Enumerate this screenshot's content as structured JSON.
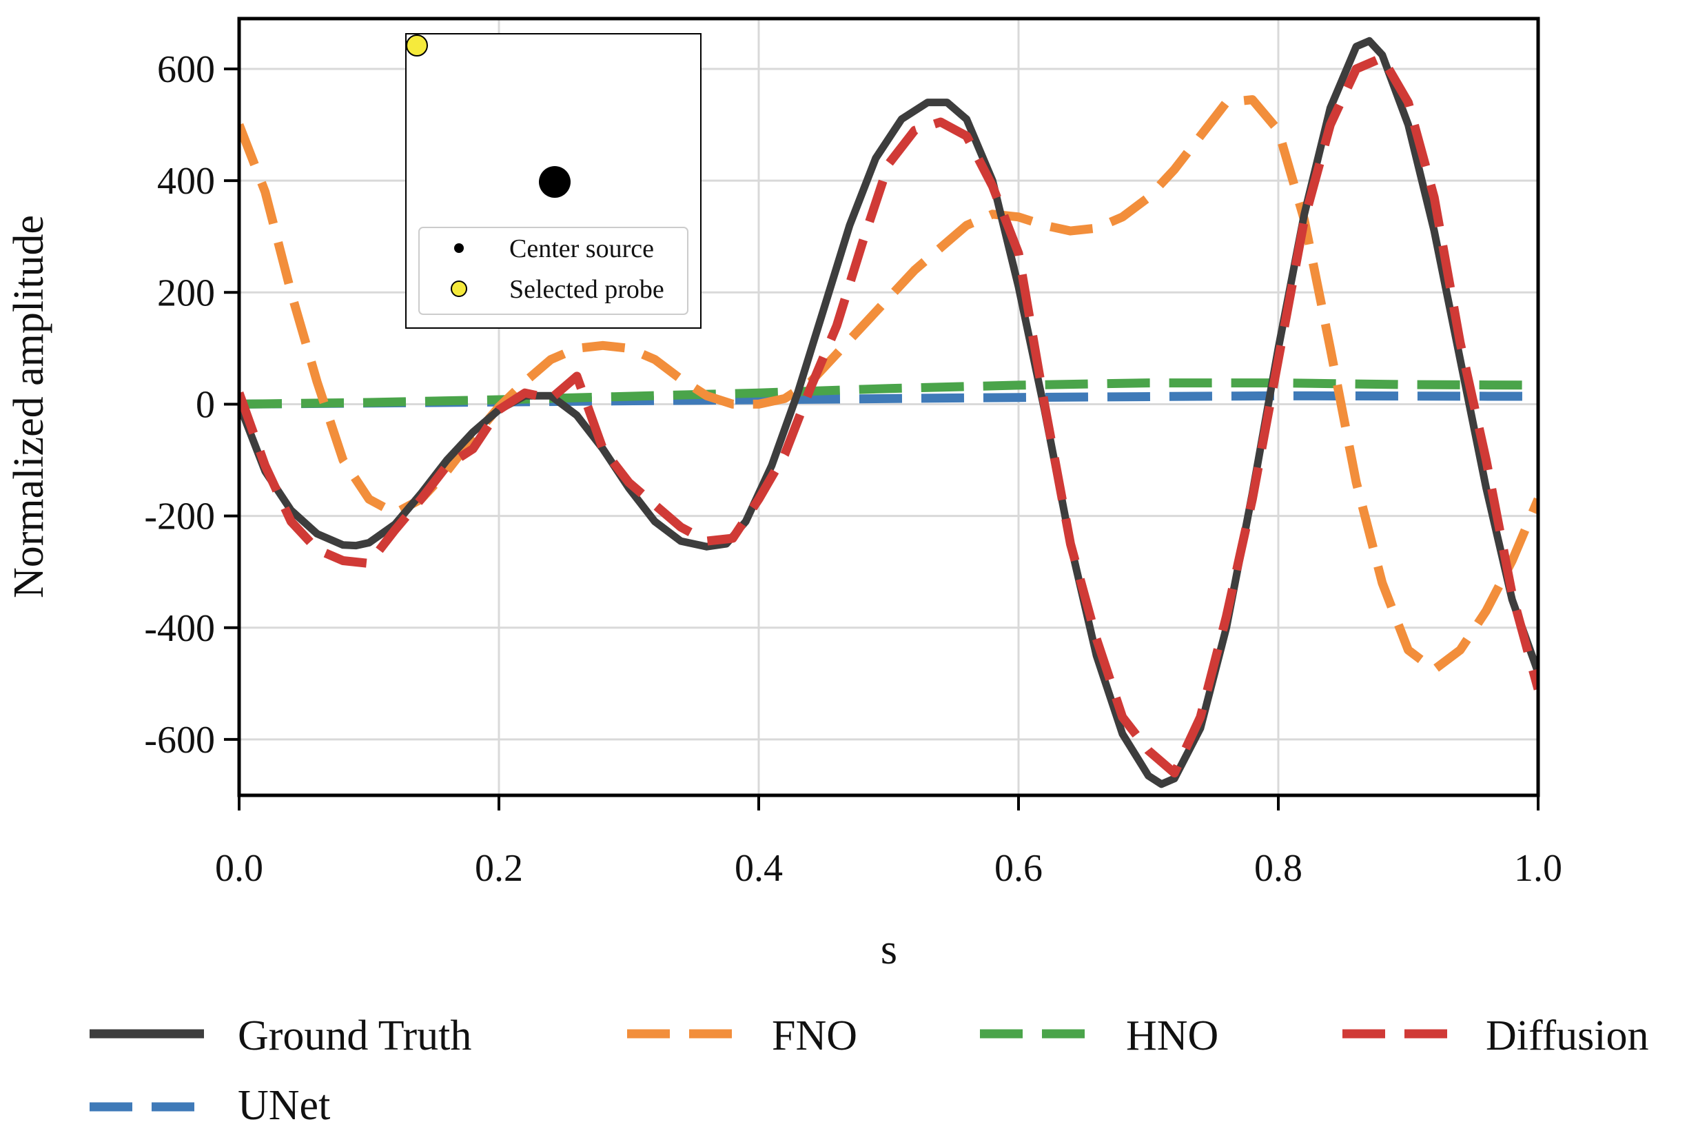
{
  "chart_data": {
    "type": "line",
    "title": "",
    "xlabel": "s",
    "ylabel": "Normalized amplitude",
    "xlim": [
      0.0,
      1.0
    ],
    "ylim": [
      -700,
      690
    ],
    "grid": true,
    "x_ticks": [
      0.0,
      0.2,
      0.4,
      0.6,
      0.8,
      1.0
    ],
    "x_tick_labels": [
      "0.0",
      "0.2",
      "0.4",
      "0.6",
      "0.8",
      "1.0"
    ],
    "y_ticks": [
      600,
      400,
      200,
      0,
      -200,
      -400,
      -600
    ],
    "y_tick_labels": [
      "600",
      "400",
      "200",
      "0",
      "-200",
      "-400",
      "-600"
    ],
    "legend_placement": "bottom",
    "series": [
      {
        "name": "Ground Truth",
        "color": "#3d3d3d",
        "style": "solid",
        "x": [
          0.0,
          0.02,
          0.04,
          0.06,
          0.08,
          0.09,
          0.1,
          0.12,
          0.14,
          0.16,
          0.18,
          0.2,
          0.22,
          0.24,
          0.26,
          0.28,
          0.3,
          0.32,
          0.34,
          0.36,
          0.375,
          0.39,
          0.41,
          0.43,
          0.45,
          0.47,
          0.49,
          0.51,
          0.53,
          0.545,
          0.56,
          0.58,
          0.6,
          0.62,
          0.64,
          0.66,
          0.68,
          0.7,
          0.71,
          0.72,
          0.74,
          0.76,
          0.78,
          0.8,
          0.82,
          0.84,
          0.86,
          0.87,
          0.88,
          0.9,
          0.92,
          0.94,
          0.96,
          0.98,
          1.0
        ],
        "y": [
          0,
          -120,
          -190,
          -232,
          -252,
          -253,
          -248,
          -215,
          -160,
          -100,
          -50,
          -10,
          15,
          15,
          -20,
          -80,
          -150,
          -210,
          -245,
          -255,
          -250,
          -210,
          -110,
          20,
          170,
          320,
          440,
          510,
          540,
          540,
          510,
          400,
          210,
          -10,
          -250,
          -450,
          -590,
          -665,
          -680,
          -670,
          -580,
          -400,
          -160,
          100,
          340,
          530,
          640,
          650,
          625,
          500,
          310,
          80,
          -150,
          -350,
          -480
        ]
      },
      {
        "name": "FNO",
        "color": "#f28e3b",
        "style": "dashed",
        "x": [
          0.0,
          0.02,
          0.04,
          0.06,
          0.08,
          0.1,
          0.12,
          0.14,
          0.16,
          0.18,
          0.2,
          0.22,
          0.24,
          0.26,
          0.28,
          0.3,
          0.32,
          0.34,
          0.36,
          0.38,
          0.4,
          0.42,
          0.44,
          0.46,
          0.48,
          0.5,
          0.52,
          0.54,
          0.56,
          0.58,
          0.6,
          0.62,
          0.64,
          0.66,
          0.68,
          0.7,
          0.72,
          0.74,
          0.76,
          0.78,
          0.8,
          0.82,
          0.84,
          0.86,
          0.88,
          0.9,
          0.92,
          0.94,
          0.96,
          0.98,
          1.0
        ],
        "y": [
          500,
          380,
          200,
          40,
          -100,
          -170,
          -195,
          -170,
          -120,
          -60,
          -5,
          40,
          80,
          100,
          105,
          100,
          80,
          45,
          15,
          0,
          0,
          10,
          40,
          90,
          140,
          190,
          240,
          280,
          320,
          340,
          335,
          320,
          310,
          315,
          335,
          370,
          420,
          480,
          540,
          545,
          490,
          330,
          100,
          -140,
          -320,
          -440,
          -475,
          -440,
          -370,
          -280,
          -170
        ]
      },
      {
        "name": "HNO",
        "color": "#4aa44a",
        "style": "dashed",
        "x": [
          0.0,
          0.1,
          0.2,
          0.3,
          0.4,
          0.5,
          0.6,
          0.7,
          0.8,
          0.9,
          1.0
        ],
        "y": [
          0,
          3,
          8,
          14,
          20,
          28,
          34,
          38,
          38,
          35,
          34
        ]
      },
      {
        "name": "Diffusion",
        "color": "#d03a36",
        "style": "dashed",
        "x": [
          0.0,
          0.02,
          0.04,
          0.06,
          0.08,
          0.1,
          0.12,
          0.14,
          0.16,
          0.18,
          0.2,
          0.22,
          0.24,
          0.26,
          0.28,
          0.3,
          0.32,
          0.34,
          0.36,
          0.38,
          0.4,
          0.42,
          0.44,
          0.46,
          0.48,
          0.5,
          0.52,
          0.54,
          0.56,
          0.58,
          0.6,
          0.62,
          0.64,
          0.66,
          0.68,
          0.7,
          0.72,
          0.74,
          0.76,
          0.78,
          0.8,
          0.82,
          0.84,
          0.86,
          0.88,
          0.9,
          0.92,
          0.94,
          0.96,
          0.98,
          1.0
        ],
        "y": [
          20,
          -110,
          -210,
          -260,
          -280,
          -285,
          -225,
          -170,
          -110,
          -80,
          -10,
          20,
          10,
          50,
          -80,
          -140,
          -180,
          -220,
          -245,
          -240,
          -170,
          -90,
          30,
          140,
          290,
          430,
          490,
          505,
          480,
          390,
          270,
          0,
          -250,
          -420,
          -560,
          -620,
          -660,
          -560,
          -380,
          -170,
          80,
          330,
          500,
          600,
          620,
          540,
          370,
          110,
          -100,
          -340,
          -510
        ]
      },
      {
        "name": "UNet",
        "color": "#3f7ab8",
        "style": "dashed",
        "x": [
          0.0,
          0.2,
          0.4,
          0.6,
          0.8,
          1.0
        ],
        "y": [
          0,
          4,
          8,
          12,
          15,
          14
        ]
      }
    ],
    "legend": [
      "Ground Truth",
      "FNO",
      "HNO",
      "Diffusion",
      "UNet"
    ],
    "inset": {
      "legend": [
        "Center source",
        "Selected probe"
      ],
      "marker_colors": {
        "center_source": "#000000",
        "selected_probe": "#f5ea3c"
      }
    }
  }
}
